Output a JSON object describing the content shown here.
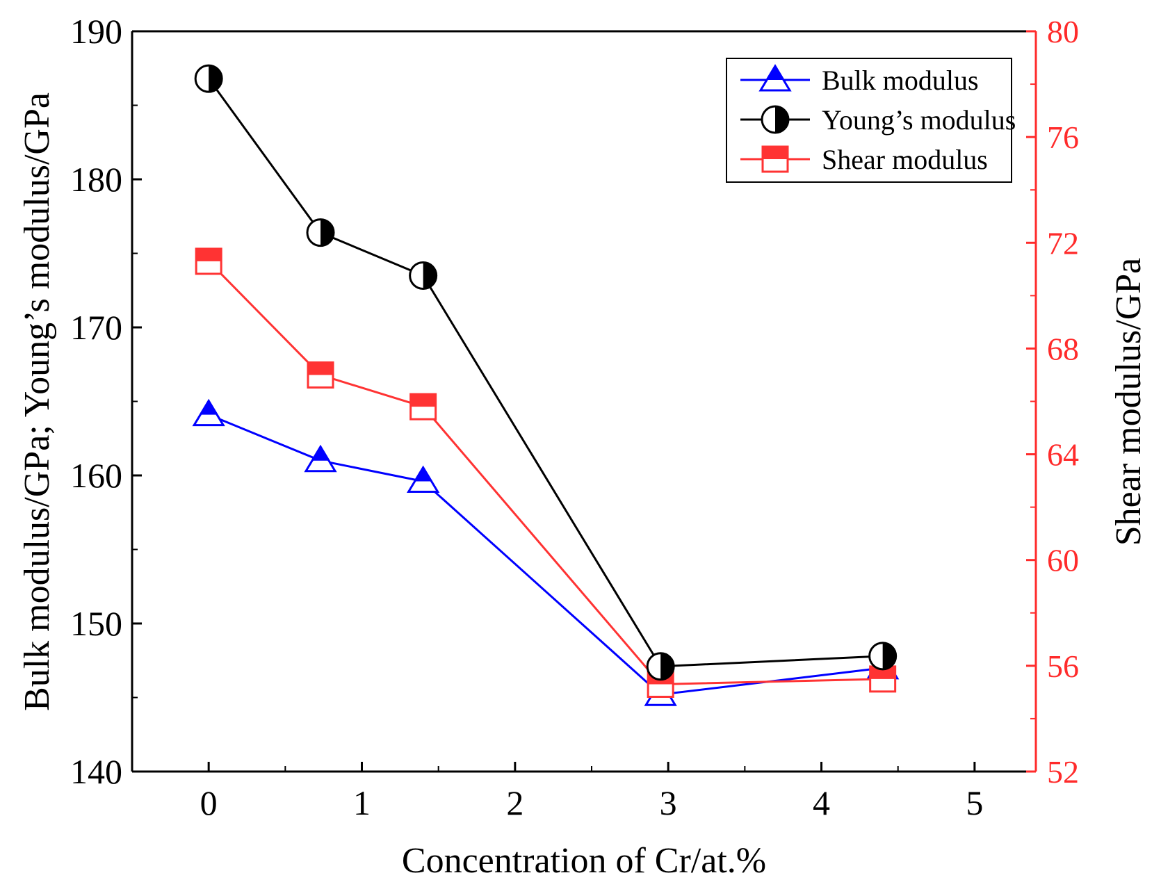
{
  "chart_data": {
    "type": "line",
    "x": [
      0,
      0.73,
      1.4,
      2.95,
      4.4
    ],
    "xlabel": "Concentration of Cr/at.%",
    "ylabel_left": "Bulk modulus/GPa;  Young’s modulus/GPa",
    "ylabel_right": "Shear modulus/GPa",
    "xlim": [
      -0.5,
      5.4
    ],
    "ylim_left": [
      140,
      190
    ],
    "ylim_right": [
      52,
      80
    ],
    "xticks": [
      "0",
      "1",
      "2",
      "3",
      "4",
      "5"
    ],
    "yticks_left": [
      "140",
      "150",
      "160",
      "170",
      "180",
      "190"
    ],
    "yticks_right": [
      "52",
      "56",
      "60",
      "64",
      "68",
      "72",
      "76",
      "80"
    ],
    "series": [
      {
        "name": "Bulk modulus",
        "axis": "left",
        "color": "#0000ff",
        "marker": "triangle",
        "values": [
          164.1,
          161.0,
          159.6,
          145.2,
          147.0
        ]
      },
      {
        "name": "Young’s modulus",
        "axis": "left",
        "color": "#000000",
        "marker": "half-circle",
        "values": [
          186.8,
          176.4,
          173.5,
          147.1,
          147.8
        ]
      },
      {
        "name": "Shear modulus",
        "axis": "right",
        "color": "#ff3333",
        "marker": "half-square",
        "values": [
          71.3,
          67.0,
          65.8,
          55.3,
          55.5
        ]
      }
    ]
  }
}
